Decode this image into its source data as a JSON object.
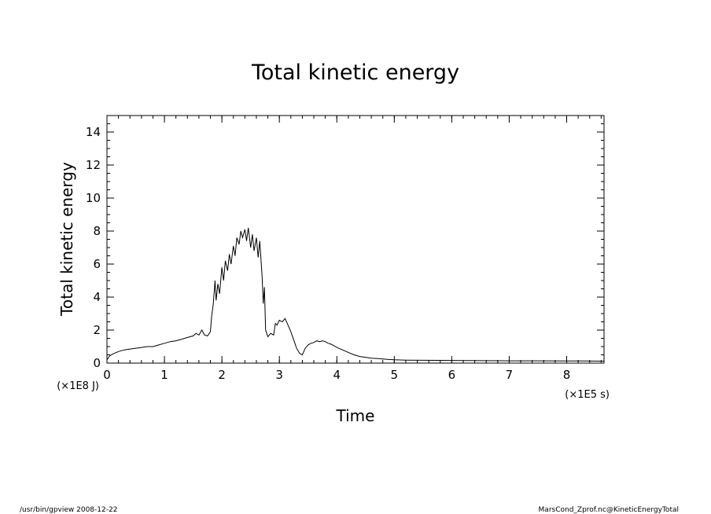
{
  "chart_data": {
    "type": "line",
    "title": "Total kinetic energy",
    "xlabel": "Time",
    "ylabel": "Total kinetic energy",
    "x_unit": "(×1E5 s)",
    "y_unit": "(×1E8 J)",
    "xlim": [
      0,
      8.65
    ],
    "ylim": [
      0,
      15
    ],
    "x_ticks": [
      0,
      1,
      2,
      3,
      4,
      5,
      6,
      7,
      8
    ],
    "y_ticks": [
      0,
      2,
      4,
      6,
      8,
      10,
      12,
      14
    ],
    "grid": false,
    "series": [
      {
        "color": "#000000",
        "x": [
          0.0,
          0.05,
          0.1,
          0.2,
          0.3,
          0.4,
          0.5,
          0.6,
          0.7,
          0.8,
          0.9,
          1.0,
          1.1,
          1.2,
          1.3,
          1.4,
          1.5,
          1.55,
          1.6,
          1.65,
          1.7,
          1.75,
          1.8,
          1.82,
          1.85,
          1.88,
          1.9,
          1.93,
          1.96,
          2.0,
          2.03,
          2.06,
          2.1,
          2.13,
          2.16,
          2.2,
          2.23,
          2.26,
          2.3,
          2.33,
          2.36,
          2.4,
          2.43,
          2.46,
          2.5,
          2.53,
          2.56,
          2.6,
          2.63,
          2.66,
          2.7,
          2.72,
          2.74,
          2.76,
          2.78,
          2.8,
          2.85,
          2.9,
          2.93,
          2.96,
          3.0,
          3.05,
          3.1,
          3.15,
          3.2,
          3.25,
          3.3,
          3.35,
          3.4,
          3.45,
          3.5,
          3.55,
          3.6,
          3.65,
          3.7,
          3.75,
          3.8,
          3.85,
          3.9,
          3.95,
          4.0,
          4.1,
          4.2,
          4.3,
          4.4,
          4.5,
          4.6,
          4.7,
          4.8,
          4.9,
          5.0,
          5.2,
          5.5,
          6.0,
          6.5,
          7.0,
          7.5,
          8.0,
          8.3,
          8.65
        ],
        "y": [
          0.2,
          0.45,
          0.55,
          0.7,
          0.8,
          0.85,
          0.9,
          0.95,
          1.0,
          1.0,
          1.1,
          1.2,
          1.3,
          1.35,
          1.45,
          1.55,
          1.65,
          1.8,
          1.7,
          2.0,
          1.7,
          1.65,
          1.9,
          2.8,
          3.6,
          5.0,
          3.8,
          4.8,
          4.2,
          5.8,
          5.0,
          6.2,
          5.6,
          6.6,
          6.0,
          7.1,
          6.5,
          7.6,
          7.2,
          8.0,
          7.6,
          8.1,
          7.4,
          8.2,
          7.0,
          7.8,
          6.8,
          7.6,
          6.4,
          7.4,
          5.2,
          3.6,
          4.6,
          2.0,
          1.8,
          1.6,
          1.8,
          1.7,
          2.4,
          2.3,
          2.6,
          2.5,
          2.7,
          2.3,
          1.9,
          1.4,
          0.9,
          0.6,
          0.5,
          0.9,
          1.1,
          1.2,
          1.25,
          1.35,
          1.3,
          1.35,
          1.3,
          1.2,
          1.15,
          1.05,
          0.95,
          0.8,
          0.65,
          0.5,
          0.4,
          0.35,
          0.3,
          0.28,
          0.25,
          0.22,
          0.2,
          0.18,
          0.17,
          0.16,
          0.15,
          0.14,
          0.14,
          0.13,
          0.13,
          0.12
        ]
      }
    ]
  },
  "footer": {
    "left": "/usr/bin/gpview   2008-12-22",
    "right": "MarsCond_Zprof.nc@KineticEnergyTotal"
  }
}
